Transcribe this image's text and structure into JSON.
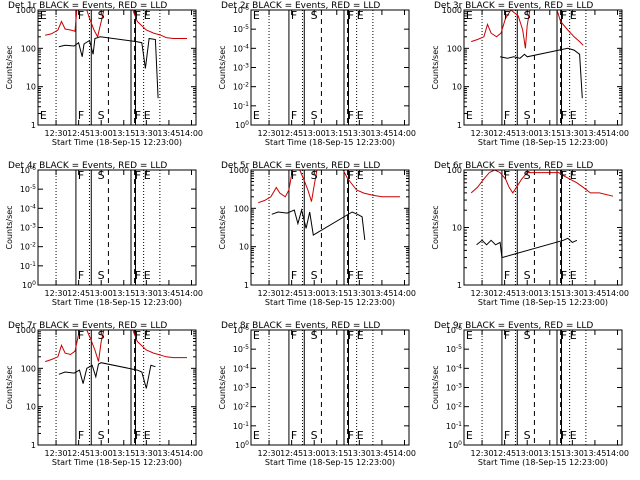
{
  "chart_data": [
    {
      "type": "line",
      "title": "Det 1r BLACK = Events, RED = LLD",
      "ylabel": "Counts/sec",
      "xlabel": "Start Time (18-Sep-15 12:23:00)",
      "x_ticks": [
        "12:30",
        "12:45",
        "13:00",
        "13:15",
        "13:30",
        "13:45",
        "14:00"
      ],
      "y_ticks": [
        "1",
        "10",
        "100",
        "1000"
      ],
      "y_log_min": 0,
      "y_log_max": 3,
      "markers": [
        "E",
        "F",
        "S",
        "F",
        "E"
      ],
      "series": [
        {
          "color": "#000000",
          "points": [
            [
              12.53,
              110
            ],
            [
              12.6,
              120
            ],
            [
              12.7,
              115
            ],
            [
              12.75,
              140
            ],
            [
              12.79,
              60
            ],
            [
              12.81,
              130
            ],
            [
              12.87,
              160
            ],
            [
              12.91,
              70
            ],
            [
              12.93,
              180
            ],
            [
              12.99,
              200
            ],
            [
              13.39,
              150
            ],
            [
              13.45,
              140
            ],
            [
              13.49,
              30
            ],
            [
              13.53,
              180
            ],
            [
              13.6,
              170
            ],
            [
              13.63,
              5
            ]
          ]
        },
        {
          "color": "#cc0000",
          "points": [
            [
              12.38,
              220
            ],
            [
              12.45,
              240
            ],
            [
              12.52,
              300
            ],
            [
              12.56,
              500
            ],
            [
              12.6,
              320
            ],
            [
              12.66,
              300
            ],
            [
              12.71,
              280
            ],
            [
              12.73,
              1000
            ],
            [
              12.84,
              1000
            ],
            [
              12.87,
              600
            ],
            [
              12.92,
              300
            ],
            [
              12.96,
              200
            ],
            [
              13.0,
              500
            ],
            [
              13.03,
              1000
            ],
            [
              13.35,
              1000
            ],
            [
              13.4,
              500
            ],
            [
              13.5,
              300
            ],
            [
              13.58,
              250
            ],
            [
              13.66,
              220
            ],
            [
              13.72,
              190
            ],
            [
              13.8,
              180
            ],
            [
              13.95,
              180
            ]
          ]
        }
      ]
    },
    {
      "type": "line",
      "title": "Det 2r BLACK = Events, RED = LLD",
      "ylabel": "Counts/sec",
      "xlabel": "Start Time (18-Sep-15 12:23:00)",
      "x_ticks": [
        "12:30",
        "12:45",
        "13:00",
        "13:15",
        "13:30",
        "13:45",
        "14:00"
      ],
      "y_ticks": [
        "10^0",
        "10^-1",
        "10^-2",
        "10^-3",
        "10^-4",
        "10^-5",
        "10^-6"
      ],
      "y_log_min": 0,
      "y_log_max": 1,
      "markers": [
        "E",
        "F",
        "S",
        "F",
        "E"
      ],
      "series": []
    },
    {
      "type": "line",
      "title": "Det 3r BLACK = Events, RED = LLD",
      "ylabel": "Counts/sec",
      "xlabel": "Start Time (18-Sep-15 12:23:00)",
      "x_ticks": [
        "12:30",
        "12:45",
        "13:00",
        "13:15",
        "13:30",
        "13:45",
        "14:00"
      ],
      "y_ticks": [
        "1",
        "10",
        "100",
        "1000"
      ],
      "y_log_min": 0,
      "y_log_max": 3,
      "markers": [
        "E",
        "F",
        "S",
        "F",
        "E"
      ],
      "series": [
        {
          "color": "#000000",
          "points": [
            [
              12.7,
              60
            ],
            [
              12.78,
              55
            ],
            [
              12.85,
              60
            ],
            [
              12.92,
              55
            ],
            [
              12.97,
              70
            ],
            [
              13.0,
              60
            ],
            [
              13.45,
              100
            ],
            [
              13.52,
              90
            ],
            [
              13.58,
              70
            ],
            [
              13.61,
              5
            ]
          ]
        },
        {
          "color": "#cc0000",
          "points": [
            [
              12.38,
              150
            ],
            [
              12.45,
              170
            ],
            [
              12.52,
              200
            ],
            [
              12.56,
              420
            ],
            [
              12.6,
              250
            ],
            [
              12.66,
              200
            ],
            [
              12.71,
              250
            ],
            [
              12.76,
              600
            ],
            [
              12.82,
              1000
            ],
            [
              12.9,
              700
            ],
            [
              12.95,
              300
            ],
            [
              12.98,
              100
            ],
            [
              13.0,
              400
            ],
            [
              13.03,
              1000
            ],
            [
              13.33,
              1000
            ],
            [
              13.37,
              500
            ],
            [
              13.45,
              300
            ],
            [
              13.52,
              200
            ],
            [
              13.58,
              150
            ],
            [
              13.62,
              120
            ]
          ]
        }
      ]
    },
    {
      "type": "line",
      "title": "Det 4r BLACK = Events, RED = LLD",
      "ylabel": "Counts/sec",
      "xlabel": "Start Time (18-Sep-15 12:23:00)",
      "x_ticks": [
        "12:30",
        "12:45",
        "13:00",
        "13:15",
        "13:30",
        "13:45",
        "14:00"
      ],
      "y_ticks": [
        "10^0",
        "10^-1",
        "10^-2",
        "10^-3",
        "10^-4",
        "10^-5",
        "10^-6"
      ],
      "y_log_min": 0,
      "y_log_max": 1,
      "markers": [
        "F",
        "S",
        "F",
        "E"
      ],
      "series": []
    },
    {
      "type": "line",
      "title": "Det 5r BLACK = Events, RED = LLD",
      "ylabel": "Counts/sec",
      "xlabel": "Start Time (18-Sep-15 12:23:00)",
      "x_ticks": [
        "12:30",
        "12:45",
        "13:00",
        "13:15",
        "13:30",
        "13:45",
        "14:00"
      ],
      "y_ticks": [
        "1",
        "10",
        "100",
        "1000"
      ],
      "y_log_min": 0,
      "y_log_max": 3,
      "markers": [
        "F",
        "S",
        "F",
        "E"
      ],
      "series": [
        {
          "color": "#000000",
          "points": [
            [
              12.53,
              70
            ],
            [
              12.6,
              80
            ],
            [
              12.7,
              75
            ],
            [
              12.78,
              90
            ],
            [
              12.82,
              40
            ],
            [
              12.86,
              90
            ],
            [
              12.91,
              30
            ],
            [
              12.95,
              80
            ],
            [
              12.99,
              20
            ],
            [
              13.42,
              80
            ],
            [
              13.48,
              70
            ],
            [
              13.53,
              60
            ],
            [
              13.56,
              15
            ]
          ]
        },
        {
          "color": "#cc0000",
          "points": [
            [
              12.38,
              140
            ],
            [
              12.45,
              160
            ],
            [
              12.52,
              200
            ],
            [
              12.58,
              350
            ],
            [
              12.62,
              250
            ],
            [
              12.68,
              200
            ],
            [
              12.72,
              300
            ],
            [
              12.76,
              1000
            ],
            [
              12.84,
              1000
            ],
            [
              12.88,
              600
            ],
            [
              12.93,
              300
            ],
            [
              12.97,
              150
            ],
            [
              13.0,
              400
            ],
            [
              13.03,
              1000
            ],
            [
              13.32,
              1000
            ],
            [
              13.37,
              600
            ],
            [
              13.47,
              300
            ],
            [
              13.55,
              250
            ],
            [
              13.65,
              220
            ],
            [
              13.75,
              200
            ],
            [
              13.85,
              200
            ],
            [
              13.95,
              200
            ]
          ]
        }
      ]
    },
    {
      "type": "line",
      "title": "Det 6r BLACK = Events, RED = LLD",
      "ylabel": "Counts/sec",
      "xlabel": "Start Time (18-Sep-15 12:23:00)",
      "x_ticks": [
        "12:30",
        "12:45",
        "13:00",
        "13:15",
        "13:30",
        "13:45",
        "14:00"
      ],
      "y_ticks": [
        "1",
        "10",
        "100"
      ],
      "y_log_min": 0,
      "y_log_max": 2,
      "markers": [
        "F",
        "S",
        "F",
        "E"
      ],
      "series": [
        {
          "color": "#000000",
          "points": [
            [
              12.44,
              5
            ],
            [
              12.5,
              6
            ],
            [
              12.55,
              5
            ],
            [
              12.6,
              6
            ],
            [
              12.65,
              5
            ],
            [
              12.7,
              5.5
            ],
            [
              12.72,
              3
            ],
            [
              13.4,
              6
            ],
            [
              13.45,
              6.5
            ],
            [
              13.5,
              5.5
            ],
            [
              13.55,
              6
            ]
          ]
        },
        {
          "color": "#cc0000",
          "points": [
            [
              12.38,
              40
            ],
            [
              12.45,
              50
            ],
            [
              12.52,
              70
            ],
            [
              12.58,
              90
            ],
            [
              12.64,
              100
            ],
            [
              12.7,
              90
            ],
            [
              12.76,
              70
            ],
            [
              12.8,
              50
            ],
            [
              12.84,
              40
            ],
            [
              12.88,
              50
            ],
            [
              12.94,
              70
            ],
            [
              13.0,
              90
            ],
            [
              13.35,
              90
            ],
            [
              13.4,
              80
            ],
            [
              13.47,
              70
            ],
            [
              13.55,
              60
            ],
            [
              13.62,
              50
            ],
            [
              13.7,
              40
            ],
            [
              13.8,
              40
            ],
            [
              13.95,
              35
            ]
          ]
        }
      ]
    },
    {
      "type": "line",
      "title": "Det 7r BLACK = Events, RED = LLD",
      "ylabel": "Counts/sec",
      "xlabel": "Start Time (18-Sep-15 12:23:00)",
      "x_ticks": [
        "12:30",
        "12:45",
        "13:00",
        "13:15",
        "13:30",
        "13:45",
        "14:00"
      ],
      "y_ticks": [
        "1",
        "10",
        "100",
        "1000"
      ],
      "y_log_min": 0,
      "y_log_max": 3,
      "markers": [
        "F",
        "S",
        "F",
        "E"
      ],
      "series": [
        {
          "color": "#000000",
          "points": [
            [
              12.53,
              70
            ],
            [
              12.6,
              80
            ],
            [
              12.7,
              75
            ],
            [
              12.76,
              90
            ],
            [
              12.8,
              40
            ],
            [
              12.84,
              100
            ],
            [
              12.9,
              120
            ],
            [
              12.94,
              60
            ],
            [
              12.97,
              130
            ],
            [
              13.0,
              140
            ],
            [
              13.4,
              90
            ],
            [
              13.45,
              80
            ],
            [
              13.5,
              30
            ],
            [
              13.55,
              120
            ],
            [
              13.6,
              110
            ]
          ]
        },
        {
          "color": "#cc0000",
          "points": [
            [
              12.38,
              150
            ],
            [
              12.45,
              170
            ],
            [
              12.52,
              200
            ],
            [
              12.56,
              400
            ],
            [
              12.6,
              250
            ],
            [
              12.66,
              230
            ],
            [
              12.71,
              280
            ],
            [
              12.76,
              1000
            ],
            [
              12.84,
              1000
            ],
            [
              12.88,
              600
            ],
            [
              12.93,
              300
            ],
            [
              12.97,
              150
            ],
            [
              13.0,
              500
            ],
            [
              13.03,
              1000
            ],
            [
              13.35,
              1000
            ],
            [
              13.4,
              500
            ],
            [
              13.5,
              300
            ],
            [
              13.58,
              250
            ],
            [
              13.66,
              220
            ],
            [
              13.72,
              200
            ],
            [
              13.8,
              190
            ],
            [
              13.95,
              190
            ]
          ]
        }
      ]
    },
    {
      "type": "line",
      "title": "Det 8r BLACK = Events, RED = LLD",
      "ylabel": "Counts/sec",
      "xlabel": "Start Time (18-Sep-15 12:23:00)",
      "x_ticks": [
        "12:30",
        "12:45",
        "13:00",
        "13:15",
        "13:30",
        "13:45",
        "14:00"
      ],
      "y_ticks": [
        "10^0",
        "10^-1",
        "10^-2",
        "10^-3",
        "10^-4",
        "10^-5",
        "10^-6"
      ],
      "y_log_min": 0,
      "y_log_max": 1,
      "markers": [
        "E",
        "F",
        "S",
        "F",
        "E"
      ],
      "series": []
    },
    {
      "type": "line",
      "title": "Det 9r BLACK = Events, RED = LLD",
      "ylabel": "Counts/sec",
      "xlabel": "Start Time (18-Sep-15 12:23:00)",
      "x_ticks": [
        "12:30",
        "12:45",
        "13:00",
        "13:15",
        "13:30",
        "13:45",
        "14:00"
      ],
      "y_ticks": [
        "10^0",
        "10^-1",
        "10^-2",
        "10^-3",
        "10^-4",
        "10^-5",
        "10^-6"
      ],
      "y_log_min": 0,
      "y_log_max": 1,
      "markers": [
        "E",
        "F",
        "S",
        "F",
        "E"
      ],
      "series": []
    }
  ],
  "event_lines": {
    "dotted": [
      12.5,
      12.87,
      13.47,
      13.65
    ],
    "solid": [
      12.72,
      12.89,
      13.33,
      13.38
    ],
    "dashed": [
      13.08,
      13.37
    ]
  },
  "x_range": [
    12.3,
    14.05
  ]
}
